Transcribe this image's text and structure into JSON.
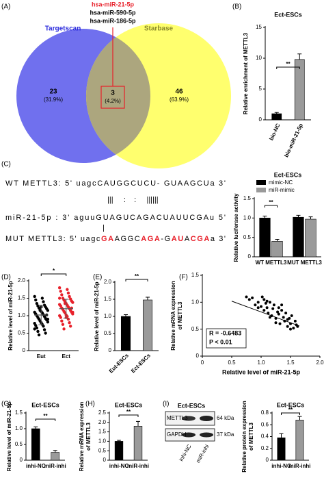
{
  "venn": {
    "panel_label": "(A)",
    "left_label": "Targetscan",
    "right_label": "Starbase",
    "left": {
      "count": 23,
      "percent": "(31.9%)"
    },
    "overlap": {
      "count": 3,
      "percent": "(4.2%)"
    },
    "right": {
      "count": 46,
      "percent": "(63.9%)"
    },
    "overlap_mirnas": [
      "hsa-miR-21-5p",
      "hsa-miR-590-5p",
      "hsa-miR-186-5p"
    ]
  },
  "binding_sites": {
    "panel_label": "(C)",
    "wt": "WT METTL3: 5' uagcCAUGGCUCU- GUAAGCUa 3'",
    "pairing": "|||     :    :     ||||||",
    "mirna": "miR-21-5p : 3' aguuGUAGUCAGACUAUUCGAu 5'",
    "mut_pairing": "|",
    "mut": [
      {
        "text": "MUT METTL3: 5' uagc"
      },
      {
        "text": "GA",
        "mutated": true
      },
      {
        "text": "AGGC"
      },
      {
        "text": "AGA",
        "mutated": true
      },
      {
        "text": "-G"
      },
      {
        "text": "AU",
        "mutated": true
      },
      {
        "text": "A"
      },
      {
        "text": "CGA",
        "mutated": true
      },
      {
        "text": "a 3'"
      }
    ]
  },
  "blot": {
    "panel_label": "(I)",
    "title": "Ect-ESCs",
    "rows": [
      {
        "protein": "METTL3",
        "size": "64 kDa"
      },
      {
        "protein": "GAPDH",
        "size": "37 kDa"
      }
    ],
    "lanes": [
      "inhi-NC",
      "miR-inhi"
    ]
  },
  "chart_data": [
    {
      "type": "bar",
      "panel_label": "(B)",
      "title": "Ect-ESCs",
      "ylabel": [
        "Relative enrichment of METTL3"
      ],
      "categories": [
        "bio-NC",
        "bio-miR-21-5p"
      ],
      "values": [
        1,
        9.8
      ],
      "errors": [
        0.2,
        0.9
      ],
      "colors": [
        "#000000",
        "#9a9a9a"
      ],
      "ylim": [
        0,
        15
      ],
      "yticks": [
        0,
        5,
        10,
        15
      ],
      "significance": "**"
    },
    {
      "type": "bar",
      "title": "Ect-ESCs",
      "ylabel": [
        "Relative luciferase activity"
      ],
      "categories": [
        "WT METTL3",
        "MUT METTL3"
      ],
      "series": [
        {
          "name": "mimic-NC",
          "color": "#000000",
          "values": [
            1.0,
            1.02
          ],
          "errors": [
            0.05,
            0.05
          ]
        },
        {
          "name": "miR-mimic",
          "color": "#9a9a9a",
          "values": [
            0.4,
            0.97
          ],
          "errors": [
            0.05,
            0.06
          ]
        }
      ],
      "ylim": [
        0,
        1.5
      ],
      "yticks": [
        0,
        0.5,
        {
          "value": 1,
          "label": "1.0"
        },
        1.5
      ],
      "significance": "**"
    },
    {
      "type": "strip",
      "panel_label": "(D)",
      "ylabel": [
        "Relative level of miR-21-5p"
      ],
      "categories": [
        "Eut",
        "Ect"
      ],
      "colors": [
        "#000000",
        "#e8202a"
      ],
      "values": [
        [
          1.55,
          1.5,
          1.45,
          1.4,
          1.35,
          1.3,
          1.28,
          1.25,
          1.22,
          1.2,
          1.18,
          1.15,
          1.12,
          1.1,
          1.08,
          1.05,
          1.03,
          1.0,
          0.98,
          0.95,
          0.92,
          0.9,
          0.88,
          0.85,
          0.82,
          0.8,
          0.78,
          0.75,
          0.72,
          0.7,
          0.65,
          0.6,
          0.55,
          0.5,
          0.45,
          1.02,
          1.15,
          0.9,
          1.25,
          0.62
        ],
        [
          1.8,
          1.75,
          1.7,
          1.65,
          1.6,
          1.55,
          1.5,
          1.48,
          1.45,
          1.42,
          1.4,
          1.38,
          1.35,
          1.32,
          1.3,
          1.28,
          1.25,
          1.22,
          1.2,
          1.18,
          1.15,
          1.12,
          1.1,
          1.08,
          1.05,
          1.02,
          1.0,
          0.98,
          0.95,
          0.9,
          0.85,
          0.8,
          0.75,
          0.7,
          0.62,
          1.22,
          1.35,
          1.1,
          0.95,
          1.5
        ]
      ],
      "means": [
        1.02,
        1.2
      ],
      "sds": [
        0.28,
        0.27
      ],
      "ylim": [
        0,
        2
      ],
      "yticks": [
        0,
        0.5,
        {
          "value": 1,
          "label": "1.0"
        },
        1.5,
        {
          "value": 2,
          "label": "2.0"
        }
      ],
      "significance": "*"
    },
    {
      "type": "bar",
      "panel_label": "(E)",
      "ylabel": [
        "Relative level of miR-21-5p"
      ],
      "categories": [
        "Eut-ESCs",
        "Ect-ESCs"
      ],
      "values": [
        1.0,
        1.48
      ],
      "errors": [
        0.05,
        0.08
      ],
      "colors": [
        "#000000",
        "#9a9a9a"
      ],
      "ylim": [
        0,
        2
      ],
      "yticks": [
        0,
        0.5,
        {
          "value": 1,
          "label": "1.0"
        },
        1.5,
        {
          "value": 2,
          "label": "2.0"
        }
      ],
      "significance": "**"
    },
    {
      "type": "scatter",
      "panel_label": "(F)",
      "xlabel": "Relative level of miR-21-5p",
      "ylabel": [
        "Relative mRNA expression",
        "of METTL3"
      ],
      "x": [
        0.75,
        0.8,
        0.85,
        0.9,
        0.95,
        1.0,
        1.02,
        1.05,
        1.08,
        1.1,
        1.12,
        1.15,
        1.18,
        1.2,
        1.22,
        1.25,
        1.28,
        1.3,
        1.32,
        1.35,
        1.38,
        1.4,
        1.42,
        1.45,
        1.48,
        1.5,
        1.52,
        1.55,
        1.58,
        1.6,
        1.62,
        0.95,
        1.05,
        1.15,
        1.25,
        1.35,
        1.45,
        1.1,
        1.3,
        1.5
      ],
      "y": [
        1.1,
        1.05,
        1.08,
        0.95,
        1.0,
        0.92,
        1.1,
        0.85,
        0.98,
        0.9,
        0.8,
        1.0,
        0.75,
        0.88,
        0.95,
        0.7,
        0.82,
        0.78,
        0.6,
        0.85,
        0.72,
        0.65,
        0.8,
        0.55,
        0.7,
        0.6,
        0.75,
        0.52,
        0.65,
        0.58,
        0.55,
        0.9,
        1.05,
        0.72,
        0.62,
        0.95,
        0.68,
        1.02,
        0.9,
        0.5
      ],
      "fit": {
        "x": [
          0.5,
          1.65
        ],
        "y": [
          1.02,
          0.56
        ]
      },
      "annotations": [
        "R = -0.6483",
        "P < 0.01"
      ],
      "xlim": [
        0,
        2
      ],
      "xticks": [
        0,
        0.5,
        {
          "value": 1,
          "label": "1.0"
        },
        1.5,
        {
          "value": 2,
          "label": "2.0"
        }
      ],
      "ylim": [
        0,
        1.5
      ],
      "yticks": [
        0,
        0.5,
        {
          "value": 1,
          "label": "1.0"
        },
        1.5
      ]
    },
    {
      "type": "bar",
      "panel_label": "(G)",
      "title": "Ect-ESCs",
      "ylabel": [
        "Relative level of miR-21-5p"
      ],
      "categories": [
        "inhi-NC",
        "miR-inhi"
      ],
      "values": [
        1.0,
        0.25
      ],
      "errors": [
        0.06,
        0.06
      ],
      "colors": [
        "#000000",
        "#9a9a9a"
      ],
      "ylim": [
        0,
        1.5
      ],
      "yticks": [
        0,
        0.5,
        {
          "value": 1,
          "label": "1.0"
        },
        1.5
      ],
      "significance": "**"
    },
    {
      "type": "bar",
      "panel_label": "(H)",
      "title": "Ect-ESCs",
      "ylabel": [
        "Relative mRNA expression",
        "of METTL3"
      ],
      "categories": [
        "inhi-NC",
        "miR-inhi"
      ],
      "values": [
        1.0,
        1.8
      ],
      "errors": [
        0.05,
        0.25
      ],
      "colors": [
        "#000000",
        "#9a9a9a"
      ],
      "ylim": [
        0,
        2.5
      ],
      "yticks": [
        0,
        0.5,
        {
          "value": 1,
          "label": "1.0"
        },
        1.5,
        {
          "value": 2,
          "label": "2.0"
        },
        2.5
      ],
      "significance": "**"
    },
    {
      "type": "bar",
      "title": "Ect-ESCs",
      "ylabel": [
        "Relative protein expression",
        "of METTL3"
      ],
      "categories": [
        "inhi-NC",
        "miR-inhi"
      ],
      "values": [
        0.38,
        0.68
      ],
      "errors": [
        0.07,
        0.06
      ],
      "colors": [
        "#000000",
        "#9a9a9a"
      ],
      "ylim": [
        0,
        0.8
      ],
      "yticks": [
        0,
        0.2,
        0.4,
        0.6,
        0.8
      ],
      "significance": "**"
    }
  ]
}
